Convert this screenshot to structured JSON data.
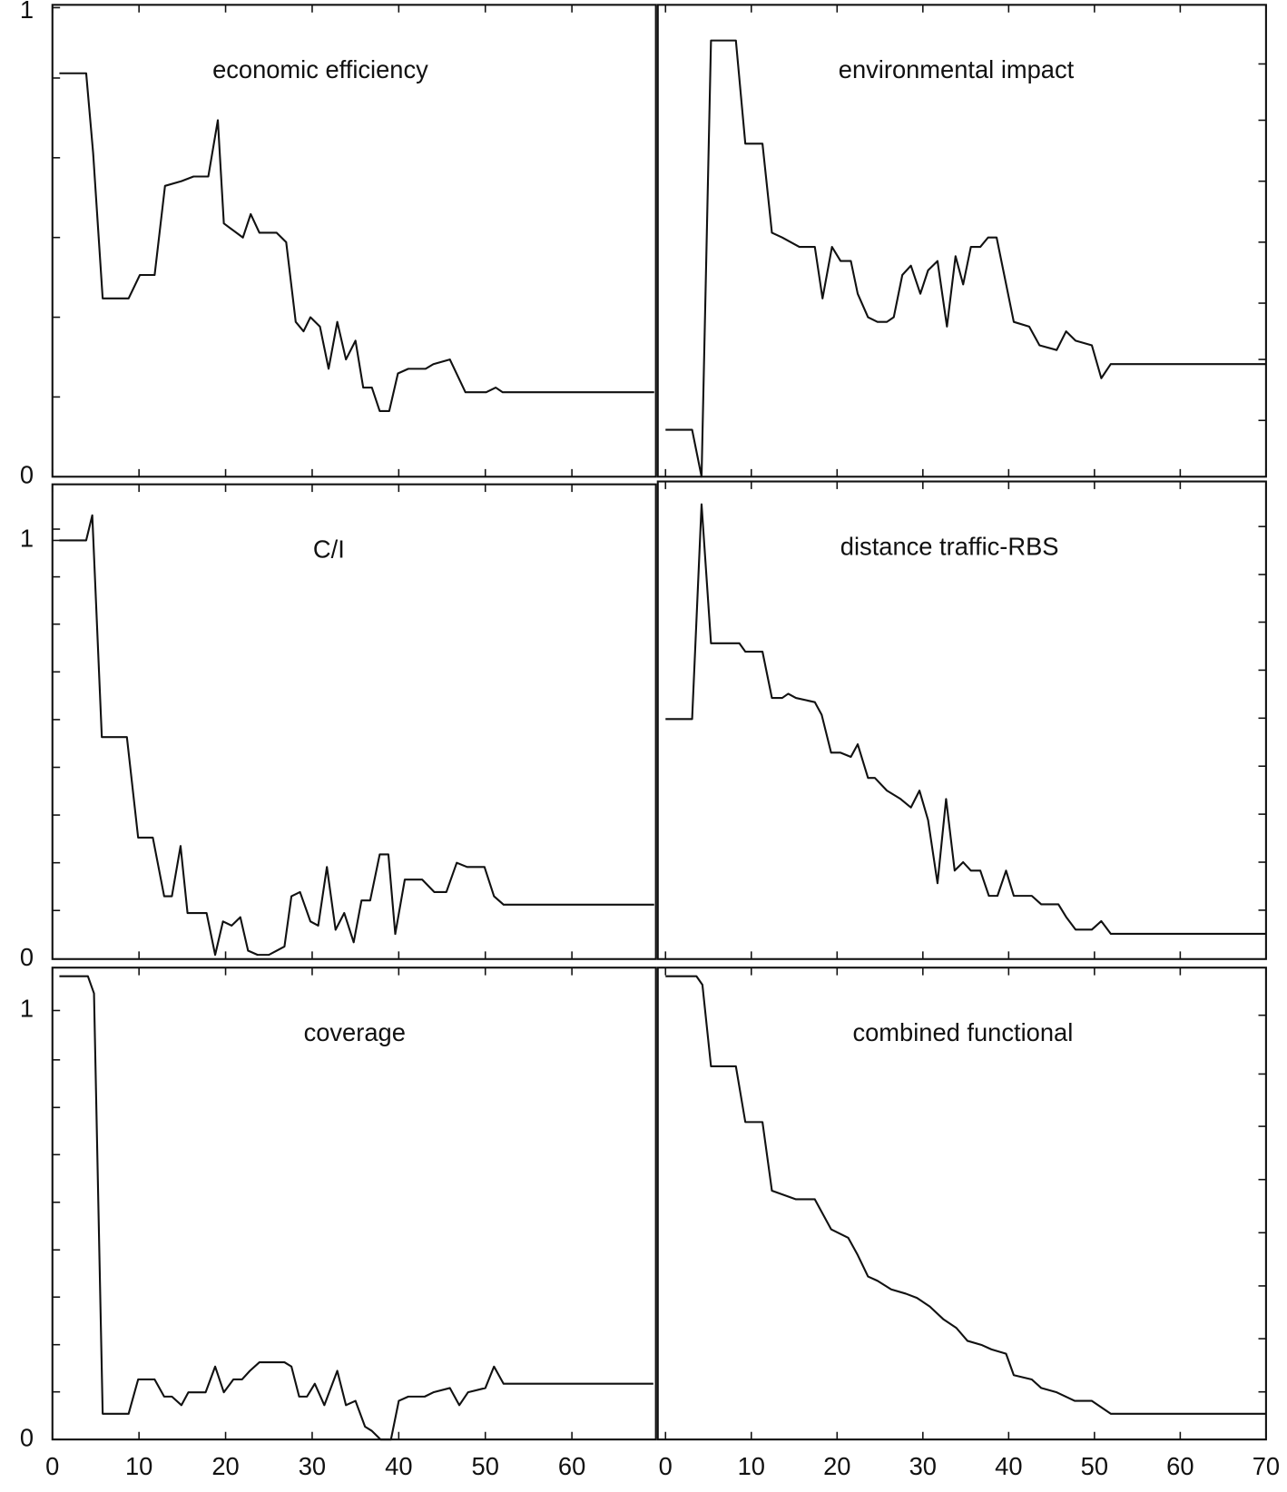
{
  "chart_data": [
    {
      "type": "line",
      "title": "economic efficiency",
      "color": "#111111",
      "x": [
        0.8,
        3.9,
        4.7,
        5.8,
        8.8,
        10.1,
        11.8,
        13,
        14.9,
        16.3,
        18,
        19.1,
        19.8,
        22,
        22.9,
        23.9,
        25.9,
        27,
        28.1,
        29,
        29.8,
        30.9,
        31.9,
        32.9,
        33.9,
        35,
        35.9,
        36.9,
        37.8,
        38.9,
        39.9,
        41.1,
        43.1,
        44,
        45.9,
        47.7,
        50.1,
        51.2,
        52,
        69.5
      ],
      "values": [
        0.86,
        0.86,
        0.69,
        0.38,
        0.38,
        0.43,
        0.43,
        0.62,
        0.63,
        0.64,
        0.64,
        0.76,
        0.54,
        0.51,
        0.56,
        0.52,
        0.52,
        0.5,
        0.33,
        0.31,
        0.34,
        0.32,
        0.23,
        0.33,
        0.25,
        0.29,
        0.19,
        0.19,
        0.14,
        0.14,
        0.22,
        0.23,
        0.23,
        0.24,
        0.25,
        0.18,
        0.18,
        0.19,
        0.18,
        0.18
      ],
      "xlim": [
        0,
        69.7
      ],
      "ylim": [
        0,
        1.006
      ],
      "xtick_marks": [
        0,
        10,
        20,
        30,
        40,
        50,
        60
      ],
      "yticks": [
        0,
        1
      ],
      "ytick_marks": [
        0.17,
        0.34,
        0.51,
        0.68,
        0.85
      ]
    },
    {
      "type": "line",
      "title": "environmental impact",
      "color": "#111111",
      "x": [
        0,
        3.1,
        4.2,
        5.3,
        8.2,
        9.3,
        11.3,
        12.4,
        13.6,
        15.6,
        17.4,
        18.3,
        19.4,
        20.4,
        21.6,
        22.4,
        23.6,
        24.7,
        25.8,
        26.6,
        27.6,
        28.6,
        29.7,
        30.6,
        31.7,
        32.8,
        33.8,
        34.7,
        35.6,
        36.7,
        37.6,
        38.6,
        40.6,
        42.4,
        43.6,
        45.6,
        46.7,
        47.8,
        49.7,
        50.8,
        51.9,
        70
      ],
      "values": [
        0.1,
        0.1,
        0,
        0.93,
        0.93,
        0.71,
        0.71,
        0.52,
        0.51,
        0.49,
        0.49,
        0.38,
        0.49,
        0.46,
        0.46,
        0.39,
        0.34,
        0.33,
        0.33,
        0.34,
        0.43,
        0.45,
        0.39,
        0.44,
        0.46,
        0.32,
        0.47,
        0.41,
        0.49,
        0.49,
        0.51,
        0.51,
        0.33,
        0.32,
        0.28,
        0.27,
        0.31,
        0.29,
        0.28,
        0.21,
        0.24,
        0.24
      ],
      "xlim": [
        -0.9,
        70
      ],
      "ylim": [
        0,
        1.006
      ],
      "xtick_marks": [
        0,
        10,
        20,
        30,
        40,
        50,
        60,
        70
      ],
      "ytick_marks": [
        0.12,
        0.25,
        0.37,
        0.5,
        0.63,
        0.76,
        0.88
      ]
    },
    {
      "type": "line",
      "title": "C/I",
      "color": "#111111",
      "x": [
        0.8,
        3.9,
        4.6,
        5.7,
        8.6,
        9.9,
        11.6,
        12.9,
        13.8,
        14.8,
        15.6,
        17.8,
        18.8,
        19.7,
        20.7,
        21.7,
        22.6,
        23.7,
        25,
        25.9,
        26.8,
        27.6,
        28.6,
        29.8,
        30.7,
        31.7,
        32.7,
        33.7,
        34.8,
        35.7,
        36.7,
        37.8,
        38.8,
        39.6,
        40.7,
        42.7,
        44.1,
        45.5,
        46.7,
        47.9,
        49.9,
        51,
        52.1,
        69.5
      ],
      "values": [
        1,
        1,
        1.06,
        0.53,
        0.53,
        0.29,
        0.29,
        0.15,
        0.15,
        0.27,
        0.11,
        0.11,
        0.01,
        0.09,
        0.08,
        0.1,
        0.02,
        0.01,
        0.01,
        0.02,
        0.03,
        0.15,
        0.16,
        0.09,
        0.08,
        0.22,
        0.07,
        0.11,
        0.04,
        0.14,
        0.14,
        0.25,
        0.25,
        0.06,
        0.19,
        0.19,
        0.16,
        0.16,
        0.23,
        0.22,
        0.22,
        0.15,
        0.13,
        0.13
      ],
      "xlim": [
        0,
        69.7
      ],
      "ylim": [
        0,
        1.134
      ],
      "xtick_marks": [
        0,
        10,
        20,
        30,
        40,
        50,
        60
      ],
      "yticks": [
        0,
        1
      ],
      "ytick_marks": [
        0.116,
        0.23,
        0.344,
        0.458,
        0.572,
        0.686,
        0.8,
        0.913,
        1.027
      ]
    },
    {
      "type": "line",
      "title": "distance traffic-RBS",
      "color": "#111111",
      "x": [
        0,
        3.1,
        4.2,
        5.3,
        8.6,
        9.3,
        11.3,
        12.4,
        13.6,
        14.3,
        15.2,
        17.4,
        18.2,
        19.3,
        20.4,
        21.6,
        22.4,
        23.6,
        24.4,
        25.8,
        27.4,
        28.6,
        29.6,
        30.6,
        31.7,
        32.7,
        33.7,
        34.7,
        35.6,
        36.7,
        37.7,
        38.7,
        39.7,
        40.6,
        42.7,
        43.8,
        45.8,
        46.7,
        47.8,
        49.7,
        50.8,
        51.9,
        70
      ],
      "values": [
        0.57,
        0.57,
        1.08,
        0.75,
        0.75,
        0.73,
        0.73,
        0.62,
        0.62,
        0.63,
        0.62,
        0.61,
        0.58,
        0.49,
        0.49,
        0.48,
        0.51,
        0.43,
        0.43,
        0.4,
        0.38,
        0.36,
        0.4,
        0.33,
        0.18,
        0.38,
        0.21,
        0.23,
        0.21,
        0.21,
        0.15,
        0.15,
        0.21,
        0.15,
        0.15,
        0.13,
        0.13,
        0.1,
        0.07,
        0.07,
        0.09,
        0.06,
        0.06
      ],
      "xlim": [
        -0.9,
        70
      ],
      "ylim": [
        0,
        1.134
      ],
      "xtick_marks": [
        0,
        10,
        20,
        30,
        40,
        50,
        60,
        70
      ],
      "ytick_marks": [
        0.116,
        0.23,
        0.344,
        0.458,
        0.572,
        0.686,
        0.8,
        0.913,
        1.027
      ]
    },
    {
      "type": "line",
      "title": "coverage",
      "color": "#111111",
      "x": [
        0.8,
        4.1,
        4.8,
        5.8,
        8.8,
        9.9,
        11.8,
        12.9,
        13.8,
        14.9,
        15.7,
        17.7,
        18.8,
        19.8,
        20.9,
        21.9,
        22.8,
        23.9,
        25.9,
        26.8,
        27.6,
        28.5,
        29.4,
        30.3,
        31.4,
        32.9,
        33.9,
        35,
        36.1,
        36.9,
        37.9,
        39.1,
        40,
        41.1,
        43,
        44,
        45.9,
        47,
        48,
        50,
        51,
        52.1,
        69.4
      ],
      "values": [
        1.08,
        1.08,
        1.04,
        0.06,
        0.06,
        0.14,
        0.14,
        0.1,
        0.1,
        0.08,
        0.11,
        0.11,
        0.17,
        0.11,
        0.14,
        0.14,
        0.16,
        0.18,
        0.18,
        0.18,
        0.17,
        0.1,
        0.1,
        0.13,
        0.08,
        0.16,
        0.08,
        0.09,
        0.03,
        0.02,
        0,
        0,
        0.09,
        0.1,
        0.1,
        0.11,
        0.12,
        0.08,
        0.11,
        0.12,
        0.17,
        0.13,
        0.13
      ],
      "xlim": [
        0,
        69.7
      ],
      "ylim": [
        0,
        1.1
      ],
      "xticks": [
        0,
        10,
        20,
        30,
        40,
        50,
        60
      ],
      "yticks": [
        0,
        1
      ],
      "ytick_marks": [
        0.111,
        0.221,
        0.332,
        0.442,
        0.553,
        0.664,
        0.774,
        0.885
      ]
    },
    {
      "type": "line",
      "title": "combined functional",
      "color": "#111111",
      "x": [
        0,
        3.6,
        4.3,
        5.3,
        8.2,
        9.3,
        11.3,
        12.4,
        13.8,
        15.2,
        17.4,
        19.3,
        21.3,
        22.4,
        23.6,
        24.7,
        26.3,
        28,
        29.3,
        30.8,
        32.4,
        33.9,
        35.2,
        36.9,
        38,
        39.7,
        40.6,
        42.7,
        43.8,
        45.6,
        47.7,
        49.7,
        51.9,
        70
      ],
      "values": [
        1.08,
        1.08,
        1.06,
        0.87,
        0.87,
        0.74,
        0.74,
        0.58,
        0.57,
        0.56,
        0.56,
        0.49,
        0.47,
        0.43,
        0.38,
        0.37,
        0.35,
        0.34,
        0.33,
        0.31,
        0.28,
        0.26,
        0.23,
        0.22,
        0.21,
        0.2,
        0.15,
        0.14,
        0.12,
        0.11,
        0.09,
        0.09,
        0.06,
        0.06
      ],
      "xlim": [
        -0.9,
        70
      ],
      "ylim": [
        0,
        1.1
      ],
      "xticks": [
        0,
        10,
        20,
        30,
        40,
        50,
        60,
        70
      ],
      "ytick_marks": [
        0.111,
        0.235,
        0.358,
        0.482,
        0.606,
        0.73,
        0.852,
        0.989
      ]
    }
  ]
}
